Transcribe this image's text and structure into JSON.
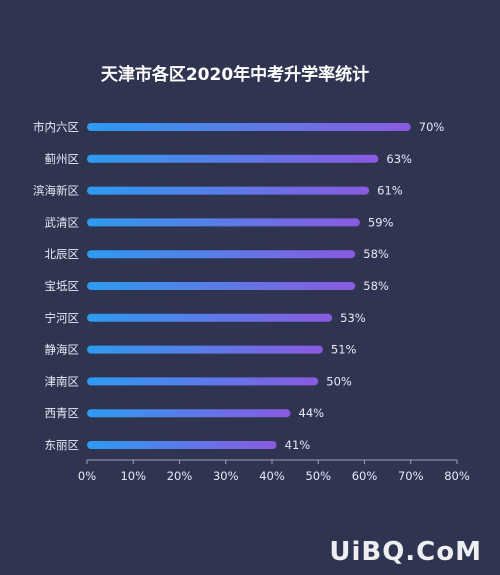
{
  "chart_data": {
    "type": "bar",
    "orientation": "horizontal",
    "title": "天津市各区2020年中考升学率统计",
    "categories": [
      "市内六区",
      "蓟州区",
      "滨海新区",
      "武清区",
      "北辰区",
      "宝坻区",
      "宁河区",
      "静海区",
      "津南区",
      "西青区",
      "东丽区"
    ],
    "values": [
      70,
      63,
      61,
      59,
      58,
      58,
      53,
      51,
      50,
      44,
      41
    ],
    "value_labels": [
      "70%",
      "63%",
      "61%",
      "59%",
      "58%",
      "58%",
      "53%",
      "51%",
      "50%",
      "44%",
      "41%"
    ],
    "xlim": [
      0,
      80
    ],
    "x_ticks": [
      "0%",
      "10%",
      "20%",
      "30%",
      "40%",
      "50%",
      "60%",
      "70%",
      "80%"
    ],
    "grid": false,
    "colors": {
      "bar_start": "#2d9bf0",
      "bar_end": "#8a5ae0",
      "background": "#2f3450",
      "axis": "#9aa0c0"
    }
  },
  "watermark": "UiBQ.CoM"
}
